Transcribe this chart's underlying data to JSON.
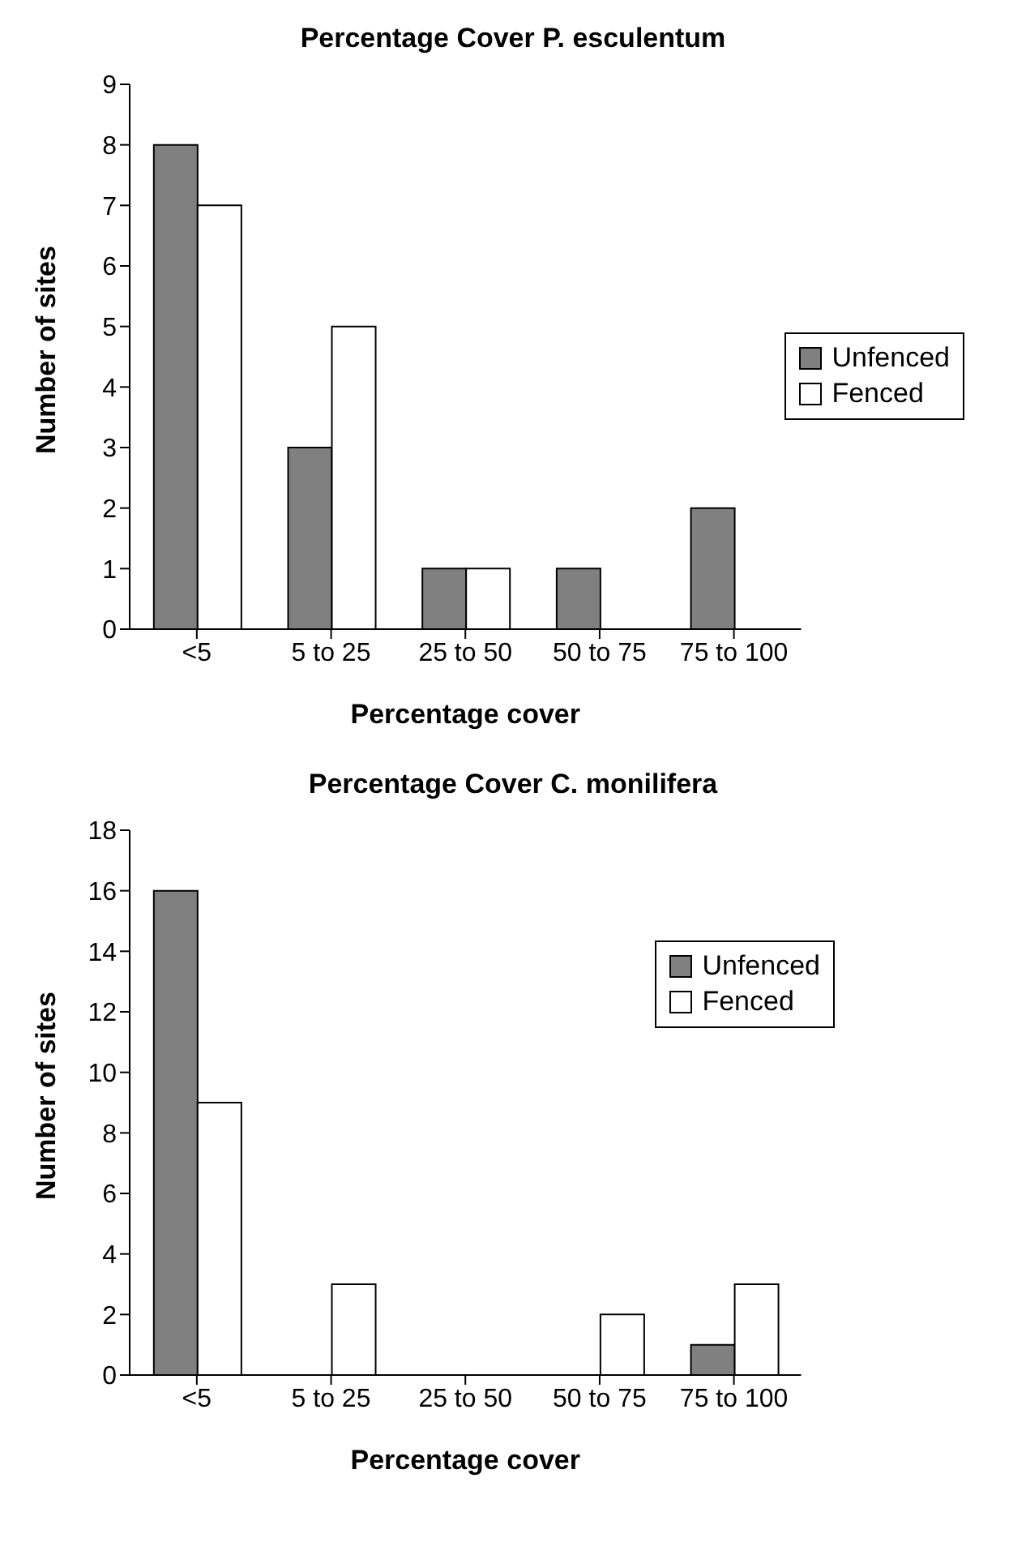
{
  "chart_data": [
    {
      "type": "bar",
      "title": "Percentage Cover P. esculentum",
      "xlabel": "Percentage cover",
      "ylabel": "Number of sites",
      "categories": [
        "<5",
        "5 to 25",
        "25 to 50",
        "50 to 75",
        "75 to 100"
      ],
      "series": [
        {
          "name": "Unfenced",
          "color": "#808080",
          "values": [
            8,
            3,
            1,
            1,
            2
          ]
        },
        {
          "name": "Fenced",
          "color": "#ffffff",
          "values": [
            7,
            5,
            1,
            0,
            0
          ]
        }
      ],
      "ylim": [
        0,
        9
      ],
      "yticks": [
        0,
        1,
        2,
        3,
        4,
        5,
        6,
        7,
        8,
        9
      ],
      "grid": false,
      "legend": "right"
    },
    {
      "type": "bar",
      "title": "Percentage Cover C. monilifera",
      "xlabel": "Percentage cover",
      "ylabel": "Number of sites",
      "categories": [
        "<5",
        "5 to 25",
        "25 to 50",
        "50 to 75",
        "75 to 100"
      ],
      "series": [
        {
          "name": "Unfenced",
          "color": "#808080",
          "values": [
            16,
            0,
            0,
            0,
            1
          ]
        },
        {
          "name": "Fenced",
          "color": "#ffffff",
          "values": [
            9,
            3,
            0,
            2,
            3
          ]
        }
      ],
      "ylim": [
        0,
        18
      ],
      "yticks": [
        0,
        2,
        4,
        6,
        8,
        10,
        12,
        14,
        16,
        18
      ],
      "grid": false,
      "legend": "top right"
    }
  ]
}
